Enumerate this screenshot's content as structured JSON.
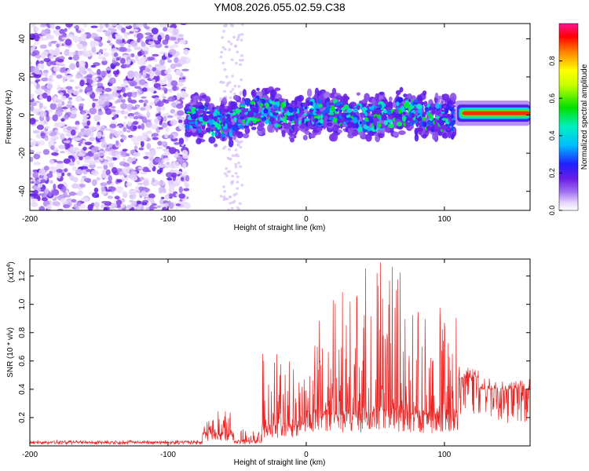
{
  "chart_data": [
    {
      "type": "heatmap",
      "title": "YM08.2026.055.02.59.C38",
      "xlabel": "Height of straight line (km)",
      "ylabel": "Frequency (Hz)",
      "xlim": [
        -200,
        162
      ],
      "ylim": [
        -50,
        48
      ],
      "xticks": [
        -200,
        -100,
        0,
        100
      ],
      "yticks": [
        -40,
        -20,
        0,
        20,
        40
      ],
      "grid": false,
      "colorbar": {
        "label": "Normalized spectral amplitude",
        "range": [
          0.0,
          1.0
        ],
        "ticks": [
          "0.0",
          "0.2",
          "0.4",
          "0.6",
          "0.8"
        ],
        "colormap": [
          "#ffffff",
          "#c9a9f5",
          "#8a2be2",
          "#2222ff",
          "#00e5ff",
          "#00e000",
          "#ffff00",
          "#ff0000",
          "#ff1493"
        ]
      },
      "regions": [
        {
          "name": "noise",
          "x": [
            -200,
            -86
          ],
          "freq_range": [
            -50,
            48
          ],
          "amplitude": 0.1
        },
        {
          "name": "sparse-noise",
          "x": [
            -62,
            -46
          ],
          "freq_range": [
            -50,
            48
          ],
          "amplitude": 0.05
        },
        {
          "name": "signal-band",
          "x": [
            -86,
            108
          ],
          "center_freq": 0,
          "half_width": 12,
          "peak_amplitude": 0.5
        },
        {
          "name": "carrier",
          "x": [
            108,
            162
          ],
          "center_freq": 1,
          "half_width": 3,
          "peak_amplitude": 0.9
        }
      ]
    },
    {
      "type": "line",
      "xlabel": "Height of straight line (km)",
      "ylabel": "SNR (10 * v/v)",
      "yscale_label": "(x10",
      "yscale_exp": "4",
      "yscale_close": ")",
      "xlim": [
        -200,
        162
      ],
      "ylim": [
        0,
        1.32
      ],
      "xticks": [
        -200,
        -100,
        0,
        100
      ],
      "yticks": [
        0.2,
        0.4,
        0.6,
        0.8,
        1.0,
        1.2
      ],
      "grid": false,
      "color": "#ee2222",
      "segments": [
        {
          "x": [
            -200,
            -75
          ],
          "baseline": 0.025,
          "max": 0.04
        },
        {
          "x": [
            -75,
            -52
          ],
          "baseline": 0.08,
          "max": 0.25
        },
        {
          "x": [
            -52,
            -32
          ],
          "baseline": 0.03,
          "max": 0.12
        },
        {
          "x": [
            -32,
            0
          ],
          "baseline": 0.14,
          "max": 0.65
        },
        {
          "x": [
            0,
            40
          ],
          "baseline": 0.22,
          "max": 1.1
        },
        {
          "x": [
            40,
            70
          ],
          "baseline": 0.25,
          "max": 1.32
        },
        {
          "x": [
            70,
            110
          ],
          "baseline": 0.22,
          "max": 1.0
        },
        {
          "x": [
            110,
            125
          ],
          "baseline": 0.48,
          "max": 0.55
        },
        {
          "x": [
            125,
            162
          ],
          "baseline": 0.4,
          "max": 0.44
        }
      ]
    }
  ]
}
